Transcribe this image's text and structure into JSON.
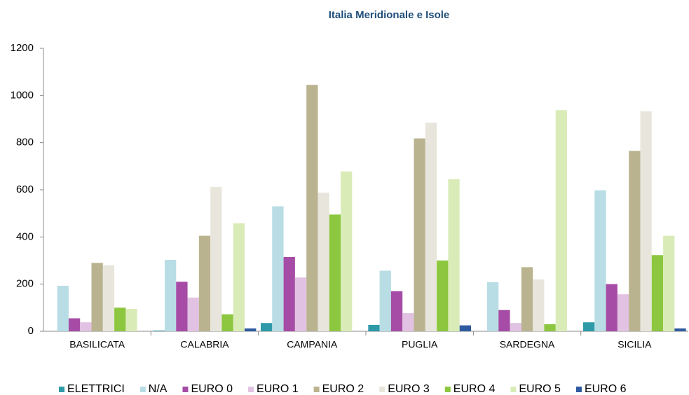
{
  "chart_data": {
    "type": "bar",
    "title": "Italia Meridionale e Isole",
    "categories": [
      "BASILICATA",
      "CALABRIA",
      "CAMPANIA",
      "PUGLIA",
      "SARDEGNA",
      "SICILIA"
    ],
    "series": [
      {
        "name": "ELETTRICI",
        "color": "#2e9aa8",
        "values": [
          0,
          3,
          35,
          27,
          0,
          38
        ]
      },
      {
        "name": "N/A",
        "color": "#b8dde4",
        "values": [
          193,
          303,
          530,
          257,
          208,
          598
        ]
      },
      {
        "name": "EURO 0",
        "color": "#a64ca6",
        "values": [
          55,
          210,
          315,
          170,
          90,
          200
        ]
      },
      {
        "name": "EURO 1",
        "color": "#e2c2e2",
        "values": [
          38,
          143,
          228,
          77,
          35,
          157
        ]
      },
      {
        "name": "EURO 2",
        "color": "#bab38f",
        "values": [
          290,
          405,
          1045,
          818,
          272,
          765
        ]
      },
      {
        "name": "EURO 3",
        "color": "#e8e6dc",
        "values": [
          280,
          612,
          588,
          885,
          220,
          933
        ]
      },
      {
        "name": "EURO 4",
        "color": "#8dc63f",
        "values": [
          100,
          72,
          495,
          300,
          30,
          323
        ]
      },
      {
        "name": "EURO 5",
        "color": "#d9ecb8",
        "values": [
          95,
          458,
          678,
          645,
          938,
          405
        ]
      },
      {
        "name": "EURO 6",
        "color": "#2e5aa0",
        "values": [
          0,
          12,
          0,
          25,
          0,
          12
        ]
      }
    ],
    "ylim": [
      0,
      1200
    ],
    "yticks": [
      0,
      200,
      400,
      600,
      800,
      1000,
      1200
    ],
    "grid": false,
    "legend": "bottom"
  }
}
